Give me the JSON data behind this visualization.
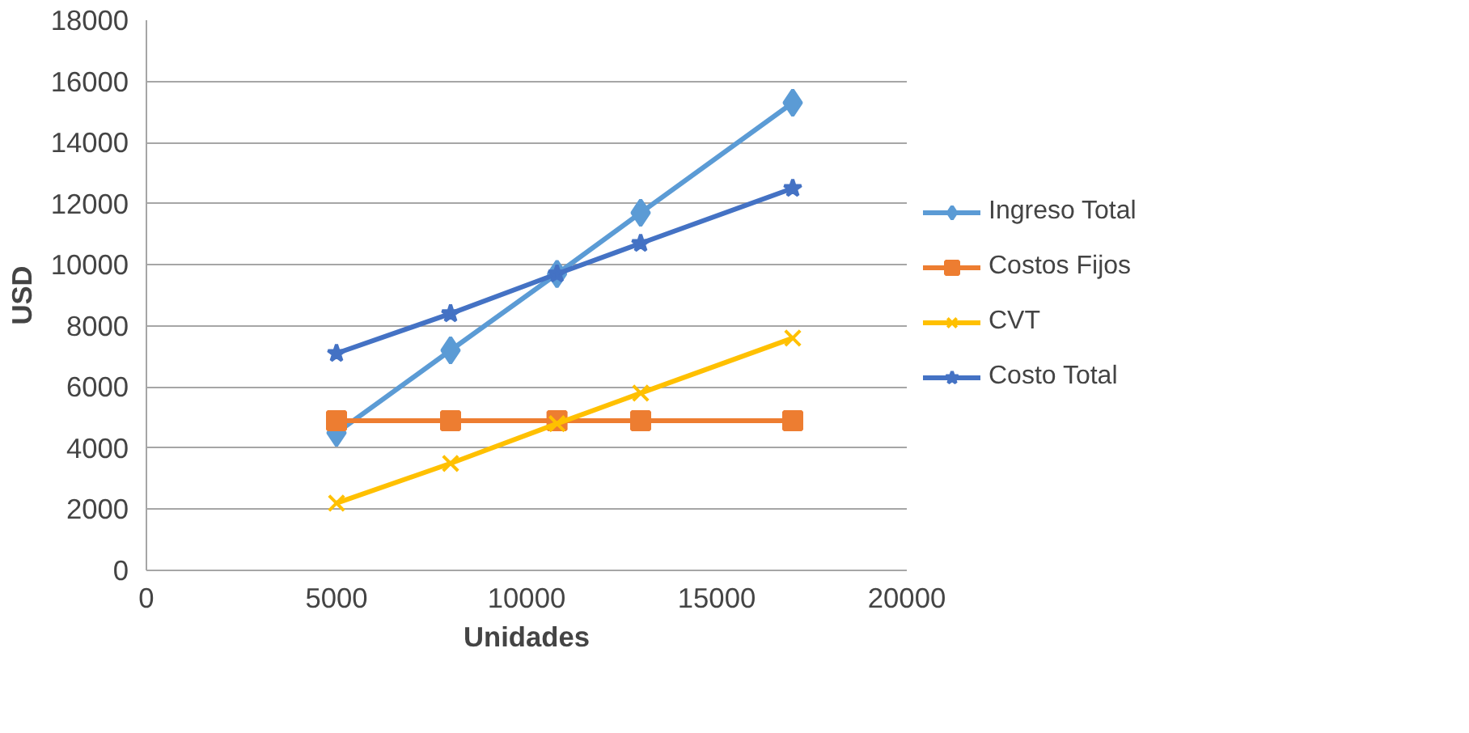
{
  "chart_data": {
    "type": "line",
    "xlabel": "Unidades",
    "ylabel": "USD",
    "x": [
      5000,
      8000,
      10800,
      13000,
      17000
    ],
    "series": [
      {
        "name": "Ingreso Total",
        "color": "#5b9bd5",
        "marker": "diamond",
        "values": [
          4500,
          7200,
          9700,
          11700,
          15300
        ]
      },
      {
        "name": "Costos Fijos",
        "color": "#ed7d31",
        "marker": "square",
        "values": [
          4900,
          4900,
          4900,
          4900,
          4900
        ]
      },
      {
        "name": "CVT",
        "color": "#ffc000",
        "marker": "cross",
        "values": [
          2200,
          3500,
          4800,
          5800,
          7600
        ]
      },
      {
        "name": "Costo Total",
        "color": "#4472c4",
        "marker": "star",
        "values": [
          7100,
          8400,
          9700,
          10700,
          12500
        ]
      }
    ],
    "xlim": [
      0,
      20000
    ],
    "xticks": [
      0,
      5000,
      10000,
      15000,
      20000
    ],
    "ylim": [
      0,
      18000
    ],
    "yticks": [
      0,
      2000,
      4000,
      6000,
      8000,
      10000,
      12000,
      14000,
      16000,
      18000
    ],
    "grid": "y",
    "legend": "right",
    "line_style": "solid"
  }
}
